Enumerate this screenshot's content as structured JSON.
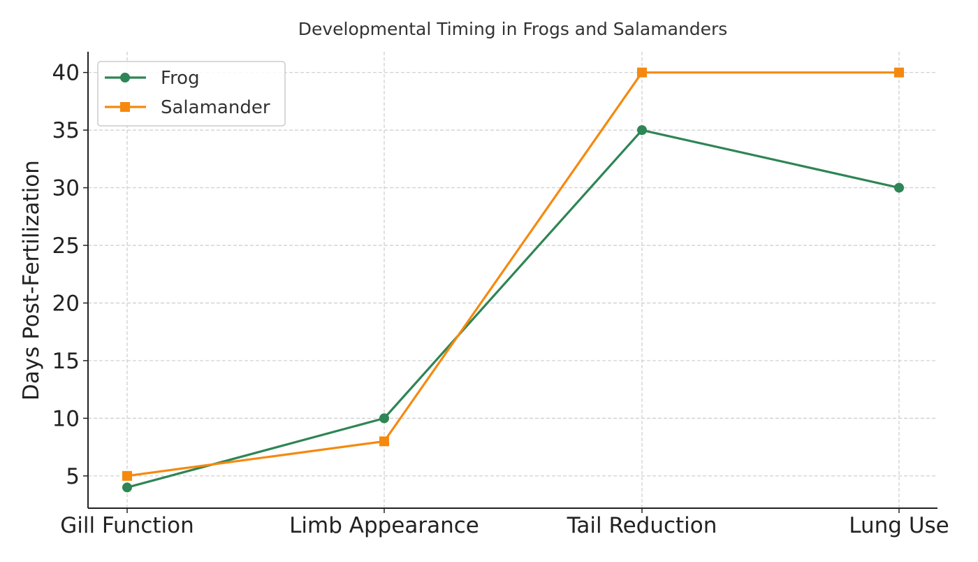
{
  "chart_data": {
    "type": "line",
    "title": "Developmental Timing in Frogs and Salamanders",
    "xlabel": "",
    "ylabel": "Days Post-Fertilization",
    "categories": [
      "Gill Function",
      "Limb Appearance",
      "Tail Reduction",
      "Lung Use"
    ],
    "series": [
      {
        "name": "Frog",
        "values": [
          4,
          10,
          35,
          30
        ],
        "color": "#2e8555",
        "marker": "circle"
      },
      {
        "name": "Salamander",
        "values": [
          5,
          8,
          40,
          40
        ],
        "color": "#f5890f",
        "marker": "square"
      }
    ],
    "ylim": [
      2.2,
      41.8
    ],
    "yticks": [
      5,
      10,
      15,
      20,
      25,
      30,
      35,
      40
    ],
    "grid": true,
    "legend": "top-left",
    "colors": {
      "grid": "#cccccc",
      "axis": "#222222",
      "text": "#222222",
      "title": "#333333"
    }
  }
}
